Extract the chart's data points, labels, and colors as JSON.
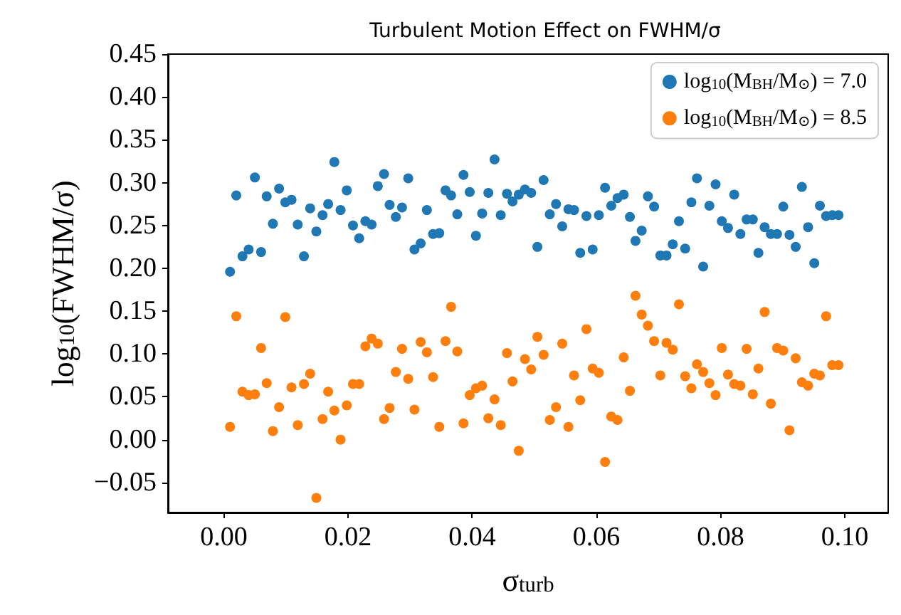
{
  "chart_data": {
    "type": "scatter",
    "title": "Turbulent Motion Effect on FWHM/σ",
    "xlabel": "σ$_{turb}$",
    "ylabel": "log$_{10}$(FWHM/σ)",
    "x": [
      0.001,
      0.002,
      0.003,
      0.004,
      0.005,
      0.006,
      0.0069,
      0.0079,
      0.0089,
      0.0099,
      0.0109,
      0.0119,
      0.0129,
      0.0139,
      0.0149,
      0.0159,
      0.0168,
      0.0178,
      0.0188,
      0.0198,
      0.0208,
      0.0218,
      0.0228,
      0.0238,
      0.0248,
      0.0258,
      0.0267,
      0.0277,
      0.0287,
      0.0297,
      0.0307,
      0.0317,
      0.0327,
      0.0337,
      0.0347,
      0.0357,
      0.0366,
      0.0376,
      0.0386,
      0.0396,
      0.0406,
      0.0416,
      0.0426,
      0.0436,
      0.0446,
      0.0456,
      0.0465,
      0.0475,
      0.0485,
      0.0495,
      0.0505,
      0.0515,
      0.0525,
      0.0535,
      0.0545,
      0.0555,
      0.0564,
      0.0574,
      0.0584,
      0.0594,
      0.0604,
      0.0614,
      0.0624,
      0.0634,
      0.0644,
      0.0654,
      0.0663,
      0.0673,
      0.0683,
      0.0693,
      0.0703,
      0.0713,
      0.0723,
      0.0733,
      0.0743,
      0.0753,
      0.0762,
      0.0772,
      0.0782,
      0.0792,
      0.0802,
      0.0812,
      0.0822,
      0.0832,
      0.0842,
      0.0852,
      0.0861,
      0.0871,
      0.0881,
      0.0891,
      0.0901,
      0.0911,
      0.0921,
      0.0931,
      0.0941,
      0.0951,
      0.096,
      0.097,
      0.098,
      0.099
    ],
    "series": [
      {
        "name": "log$_{10}$(M$_{BH}$/M$_{⊙}$) = 7.0",
        "color": "#1f77b4",
        "values": [
          0.196,
          0.285,
          0.214,
          0.222,
          0.306,
          0.219,
          0.284,
          0.252,
          0.293,
          0.277,
          0.28,
          0.251,
          0.214,
          0.27,
          0.243,
          0.262,
          0.275,
          0.324,
          0.268,
          0.291,
          0.25,
          0.235,
          0.255,
          0.251,
          0.296,
          0.31,
          0.274,
          0.26,
          0.271,
          0.305,
          0.222,
          0.229,
          0.268,
          0.24,
          0.241,
          0.291,
          0.285,
          0.263,
          0.309,
          0.289,
          0.238,
          0.264,
          0.288,
          0.327,
          0.262,
          0.287,
          0.278,
          0.286,
          0.292,
          0.288,
          0.225,
          0.303,
          0.263,
          0.275,
          0.249,
          0.269,
          0.268,
          0.218,
          0.261,
          0.222,
          0.262,
          0.294,
          0.273,
          0.282,
          0.286,
          0.26,
          0.232,
          0.244,
          0.284,
          0.272,
          0.215,
          0.215,
          0.228,
          0.255,
          0.223,
          0.277,
          0.305,
          0.202,
          0.273,
          0.298,
          0.255,
          0.247,
          0.286,
          0.24,
          0.257,
          0.257,
          0.218,
          0.248,
          0.24,
          0.24,
          0.272,
          0.239,
          0.225,
          0.295,
          0.248,
          0.206,
          0.273,
          0.261,
          0.262,
          0.262
        ]
      },
      {
        "name": "log$_{10}$(M$_{BH}$/M$_{⊙}$) = 8.5",
        "color": "#ff7f0e",
        "values": [
          0.015,
          0.144,
          0.056,
          0.052,
          0.053,
          0.107,
          0.066,
          0.01,
          0.038,
          0.143,
          0.061,
          0.017,
          0.065,
          0.077,
          -0.068,
          0.024,
          0.056,
          0.034,
          0.0,
          0.04,
          0.065,
          0.065,
          0.109,
          0.118,
          0.112,
          0.024,
          0.037,
          0.079,
          0.106,
          0.071,
          0.035,
          0.114,
          0.102,
          0.073,
          0.015,
          0.115,
          0.155,
          0.103,
          0.019,
          0.052,
          0.06,
          0.063,
          0.025,
          0.047,
          0.017,
          0.101,
          0.068,
          -0.013,
          0.094,
          0.082,
          0.12,
          0.099,
          0.023,
          0.038,
          0.112,
          0.015,
          0.075,
          0.046,
          0.129,
          0.083,
          0.078,
          -0.026,
          0.027,
          0.023,
          0.096,
          0.057,
          0.168,
          0.146,
          0.133,
          0.115,
          0.075,
          0.113,
          0.105,
          0.158,
          0.074,
          0.06,
          0.088,
          0.079,
          0.066,
          0.052,
          0.107,
          0.076,
          0.065,
          0.063,
          0.106,
          0.053,
          0.083,
          0.149,
          0.042,
          0.107,
          0.104,
          0.011,
          0.095,
          0.067,
          0.063,
          0.077,
          0.075,
          0.144,
          0.087,
          0.087
        ]
      }
    ],
    "xlim": [
      -0.009,
      0.107
    ],
    "ylim": [
      -0.085,
      0.45
    ],
    "xticks": [
      {
        "value": 0,
        "label": "0.00"
      },
      {
        "value": 0.02,
        "label": "0.02"
      },
      {
        "value": 0.04,
        "label": "0.04"
      },
      {
        "value": 0.06,
        "label": "0.06"
      },
      {
        "value": 0.08,
        "label": "0.08"
      },
      {
        "value": 0.1,
        "label": "0.10"
      }
    ],
    "yticks": [
      {
        "value": -0.05,
        "label": "−0.05"
      },
      {
        "value": 0,
        "label": "0.00"
      },
      {
        "value": 0.05,
        "label": "0.05"
      },
      {
        "value": 0.1,
        "label": "0.10"
      },
      {
        "value": 0.15,
        "label": "0.15"
      },
      {
        "value": 0.2,
        "label": "0.20"
      },
      {
        "value": 0.25,
        "label": "0.25"
      },
      {
        "value": 0.3,
        "label": "0.30"
      },
      {
        "value": 0.35,
        "label": "0.35"
      },
      {
        "value": 0.4,
        "label": "0.40"
      },
      {
        "value": 0.45,
        "label": "0.45"
      }
    ],
    "grid": false,
    "legend": "top right",
    "marker": "circle"
  }
}
